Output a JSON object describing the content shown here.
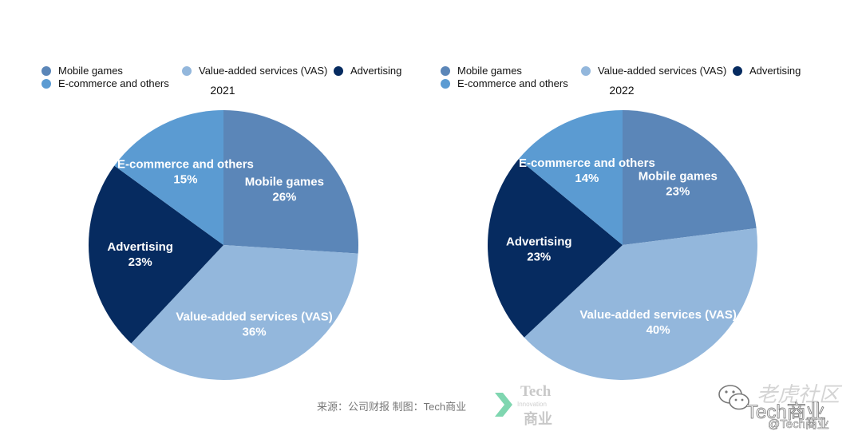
{
  "legend": [
    {
      "label": "Mobile games",
      "color": "#5b86b8"
    },
    {
      "label": "Value-added services (VAS)",
      "color": "#93b7dc"
    },
    {
      "label": "Advertising",
      "color": "#062b60"
    },
    {
      "label": "E-commerce and others",
      "color": "#5b9bd2"
    }
  ],
  "chart_data": [
    {
      "type": "pie",
      "title": "2021",
      "categories": [
        "Mobile games",
        "Value-added services (VAS)",
        "Advertising",
        "E-commerce and others"
      ],
      "values": [
        26,
        36,
        23,
        15
      ],
      "labels": [
        "26%",
        "36%",
        "23%",
        "15%"
      ]
    },
    {
      "type": "pie",
      "title": "2022",
      "categories": [
        "Mobile games",
        "Value-added services (VAS)",
        "Advertising",
        "E-commerce and others"
      ],
      "values": [
        23,
        40,
        23,
        14
      ],
      "labels": [
        "23%",
        "40%",
        "23%",
        "14%"
      ]
    }
  ],
  "footer": {
    "source": "来源：公司财报 制图：Tech商业",
    "logo_tech": "Tech",
    "logo_innovation": "Innovation",
    "logo_cn": "商业"
  },
  "watermark": {
    "site": "老虎社区",
    "account": "Tech商业",
    "handle": "@Tech商业"
  },
  "icons": {
    "brand": "chevron-logo-icon",
    "wechat": "wechat-icon"
  }
}
